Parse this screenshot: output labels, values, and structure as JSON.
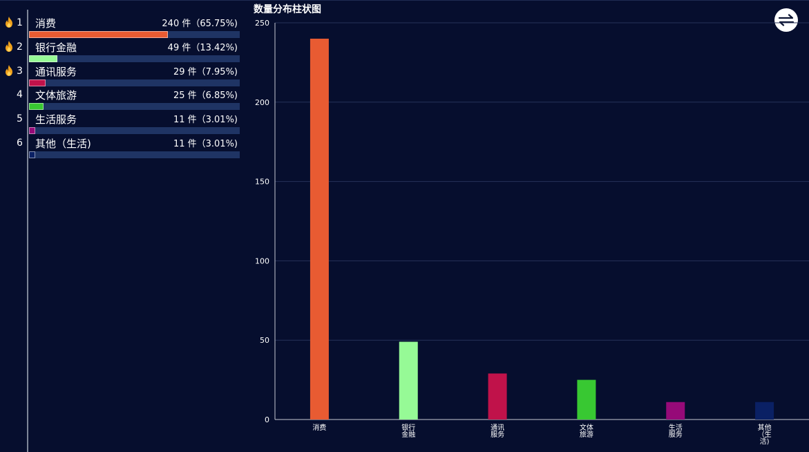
{
  "ranking": {
    "items": [
      {
        "rank": "1",
        "name": "消费",
        "count": "240 件（65.75%)",
        "percent": 65.75,
        "color": "#e85b32",
        "hot": true
      },
      {
        "rank": "2",
        "name": "银行金融",
        "count": "49 件（13.42%)",
        "percent": 13.42,
        "color": "#96fa96",
        "hot": true
      },
      {
        "rank": "3",
        "name": "通讯服务",
        "count": "29 件（7.95%)",
        "percent": 7.95,
        "color": "#c0124a",
        "hot": true
      },
      {
        "rank": "4",
        "name": "文体旅游",
        "count": "25 件（6.85%)",
        "percent": 6.85,
        "color": "#38c832",
        "hot": false
      },
      {
        "rank": "5",
        "name": "生活服务",
        "count": "11 件（3.01%)",
        "percent": 3.01,
        "color": "#960a78",
        "hot": false
      },
      {
        "rank": "6",
        "name": "其他（生活)",
        "count": "11 件（3.01%)",
        "percent": 3.01,
        "color": "#0a2064",
        "hot": false
      }
    ]
  },
  "chart_data": {
    "type": "bar",
    "title": "数量分布柱状图",
    "categories": [
      "消费",
      "银行金融",
      "通讯服务",
      "文体旅游",
      "生活服务",
      "其他（生活)"
    ],
    "category_label_lines": [
      [
        "消费"
      ],
      [
        "银行",
        "金融"
      ],
      [
        "通讯",
        "服务"
      ],
      [
        "文体",
        "旅游"
      ],
      [
        "生活",
        "服务"
      ],
      [
        "其他",
        "（生",
        "活)"
      ]
    ],
    "values": [
      240,
      49,
      29,
      25,
      11,
      11
    ],
    "colors": [
      "#e85b32",
      "#96fa96",
      "#c0124a",
      "#38c832",
      "#960a78",
      "#0a2064"
    ],
    "ylim": [
      0,
      250
    ],
    "yticks": [
      0,
      50,
      100,
      150,
      200,
      250
    ],
    "grid": true
  },
  "icons": {
    "fire": "fire-icon",
    "toggle": "swap-arrows-icon"
  }
}
